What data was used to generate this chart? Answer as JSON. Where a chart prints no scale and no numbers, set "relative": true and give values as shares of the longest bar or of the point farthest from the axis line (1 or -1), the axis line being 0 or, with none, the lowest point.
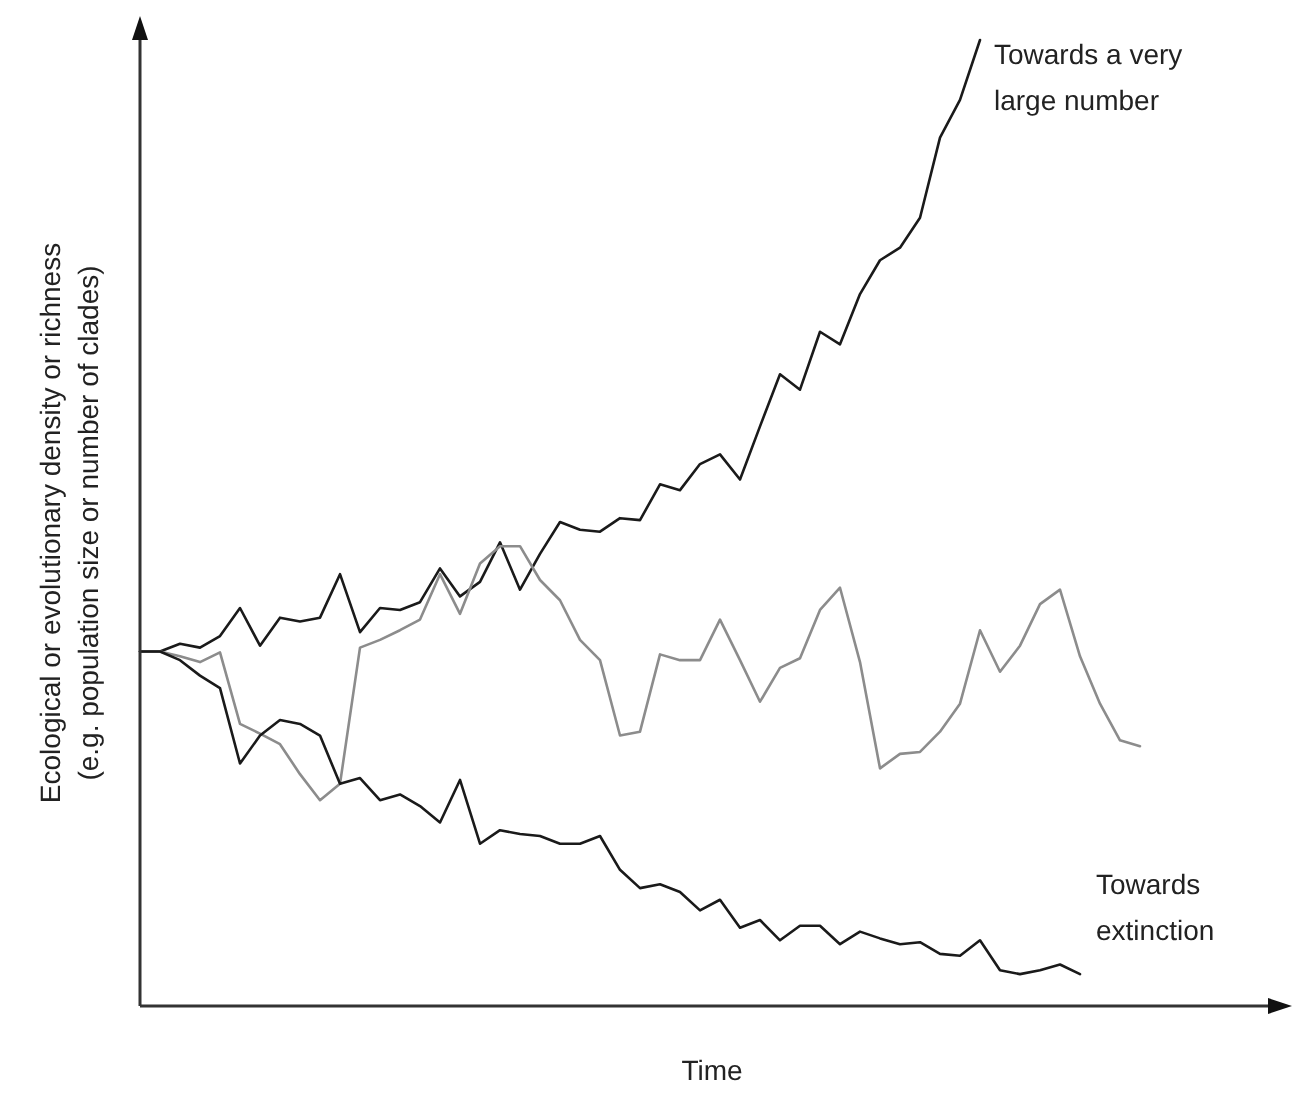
{
  "chart_data": {
    "type": "line",
    "relative": true,
    "xlabel": "Time",
    "ylabel": "Ecological or evolutionary density or richness\n(e.g. population size or number of clades)",
    "annotations": [
      "Towards a very large number",
      "Towards extinction"
    ],
    "categories": [
      null,
      null,
      null,
      null,
      null,
      null,
      null,
      null,
      null,
      null,
      null,
      null,
      null,
      null,
      null,
      null,
      null,
      null,
      null,
      null,
      null,
      null,
      null,
      null,
      null,
      null,
      null,
      null,
      null,
      null,
      null,
      null,
      null,
      null,
      null,
      null,
      null,
      null,
      null,
      null,
      null,
      null,
      null,
      null,
      null,
      null,
      null,
      null,
      null,
      null,
      null
    ],
    "series": [
      {
        "color": "#1a1a1a",
        "values": [
          0.367,
          0.367,
          0.375,
          0.371,
          0.383,
          0.412,
          0.373,
          0.402,
          0.398,
          0.402,
          0.447,
          0.387,
          0.412,
          0.41,
          0.418,
          0.453,
          0.424,
          0.439,
          0.48,
          0.431,
          0.468,
          0.501,
          0.493,
          0.491,
          0.505,
          0.503,
          0.54,
          0.534,
          0.561,
          0.571,
          0.545,
          0.6,
          0.654,
          0.638,
          0.698,
          0.685,
          0.737,
          0.772,
          0.785,
          0.816,
          0.899,
          0.938,
          1,
          null,
          null,
          null,
          null,
          null,
          null,
          null,
          null
        ]
      },
      {
        "color": "#8c8c8c",
        "values": [
          0.367,
          0.367,
          0.362,
          0.356,
          0.366,
          0.292,
          0.282,
          0.271,
          0.24,
          0.213,
          0.23,
          0.371,
          0.379,
          0.389,
          0.4,
          0.447,
          0.406,
          0.458,
          0.476,
          0.476,
          0.441,
          0.42,
          0.379,
          0.358,
          0.28,
          0.284,
          0.364,
          0.358,
          0.358,
          0.4,
          0.358,
          0.315,
          0.35,
          0.36,
          0.41,
          0.433,
          0.356,
          0.246,
          0.261,
          0.263,
          0.284,
          0.313,
          0.389,
          0.346,
          0.373,
          0.416,
          0.431,
          0.362,
          0.313,
          0.275,
          0.269
        ]
      },
      {
        "color": "#1a1a1a",
        "values": [
          0.367,
          0.367,
          0.358,
          0.342,
          0.329,
          0.251,
          0.28,
          0.296,
          0.292,
          0.28,
          0.23,
          0.236,
          0.213,
          0.219,
          0.207,
          0.19,
          0.234,
          0.168,
          0.182,
          0.178,
          0.176,
          0.168,
          0.168,
          0.176,
          0.141,
          0.122,
          0.126,
          0.118,
          0.099,
          0.11,
          0.081,
          0.089,
          0.068,
          0.083,
          0.083,
          0.064,
          0.077,
          0.07,
          0.064,
          0.066,
          0.054,
          0.052,
          0.068,
          0.037,
          0.033,
          0.037,
          0.043,
          0.033,
          null,
          null,
          null
        ]
      }
    ]
  }
}
